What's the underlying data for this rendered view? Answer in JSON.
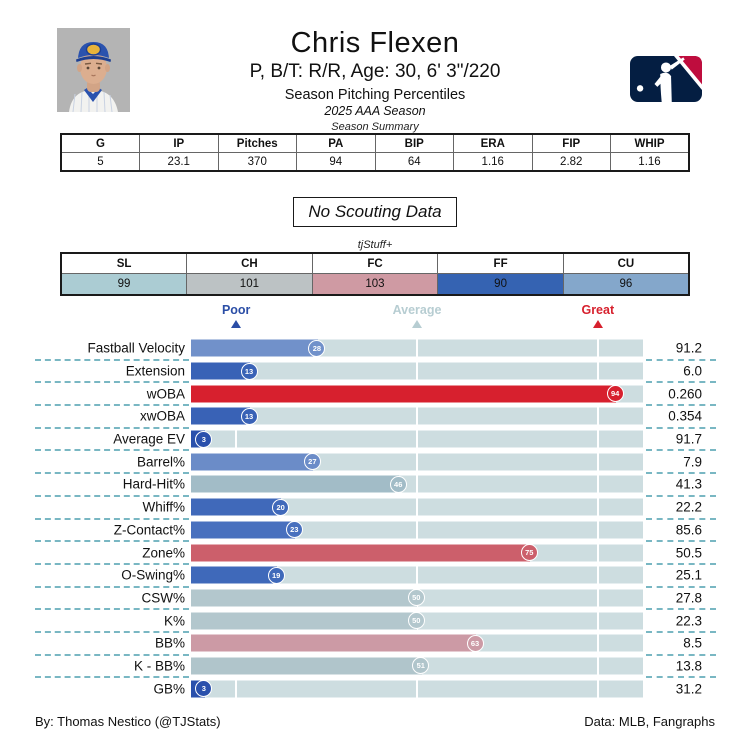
{
  "header": {
    "name": "Chris Flexen",
    "bio": "P, B/T: R/R, Age: 30, 6' 3\"/220",
    "subtitle": "Season Pitching Percentiles",
    "season": "2025 AAA Season"
  },
  "season_summary": {
    "caption": "Season Summary",
    "columns": [
      "G",
      "IP",
      "Pitches",
      "PA",
      "BIP",
      "ERA",
      "FIP",
      "WHIP"
    ],
    "values": [
      "5",
      "23.1",
      "370",
      "94",
      "64",
      "1.16",
      "2.82",
      "1.16"
    ]
  },
  "scouting": {
    "label": "No Scouting Data"
  },
  "tjstuff": {
    "caption": "tjStuff+",
    "columns": [
      "SL",
      "CH",
      "FC",
      "FF",
      "CU"
    ],
    "values": [
      "99",
      "101",
      "103",
      "90",
      "96"
    ],
    "cell_colors": [
      "#abccd3",
      "#bcc2c4",
      "#cf9aa3",
      "#3563b2",
      "#84a7cb"
    ]
  },
  "chart_data": {
    "type": "bar",
    "title": "Season Pitching Percentiles",
    "xlabel": "percentile",
    "xlim": [
      0,
      100
    ],
    "track_color": "#cddde0",
    "dash_color": "#79b7c3",
    "gridline_positions_pct": [
      10,
      50,
      90
    ],
    "axis_markers": [
      {
        "label": "Poor",
        "position_pct": 10,
        "color": "#2b4ea6"
      },
      {
        "label": "Average",
        "position_pct": 50,
        "color": "#b7cdd2"
      },
      {
        "label": "Great",
        "position_pct": 90,
        "color": "#d7212e"
      }
    ],
    "rows": [
      {
        "label": "Fastball Velocity",
        "percentile": 28,
        "value": "91.2",
        "color": "#7191ca"
      },
      {
        "label": "Extension",
        "percentile": 13,
        "value": "6.0",
        "color": "#3962b6"
      },
      {
        "label": "wOBA",
        "percentile": 94,
        "value": "0.260",
        "color": "#d7202e"
      },
      {
        "label": "xwOBA",
        "percentile": 13,
        "value": "0.354",
        "color": "#3962b6"
      },
      {
        "label": "Average EV",
        "percentile": 3,
        "value": "91.7",
        "color": "#2a50ac"
      },
      {
        "label": "Barrel%",
        "percentile": 27,
        "value": "7.9",
        "color": "#6b8cc8"
      },
      {
        "label": "Hard-Hit%",
        "percentile": 46,
        "value": "41.3",
        "color": "#a2bcc7"
      },
      {
        "label": "Whiff%",
        "percentile": 20,
        "value": "22.2",
        "color": "#4069ba"
      },
      {
        "label": "Z-Contact%",
        "percentile": 23,
        "value": "85.6",
        "color": "#4870be"
      },
      {
        "label": "Zone%",
        "percentile": 75,
        "value": "50.5",
        "color": "#cc5f6b"
      },
      {
        "label": "O-Swing%",
        "percentile": 19,
        "value": "25.1",
        "color": "#3f69ba"
      },
      {
        "label": "CSW%",
        "percentile": 50,
        "value": "27.8",
        "color": "#b3c7cd"
      },
      {
        "label": "K%",
        "percentile": 50,
        "value": "22.3",
        "color": "#b3c7cd"
      },
      {
        "label": "BB%",
        "percentile": 63,
        "value": "8.5",
        "color": "#cc9aa5"
      },
      {
        "label": "K - BB%",
        "percentile": 51,
        "value": "13.8",
        "color": "#b0c5cb"
      },
      {
        "label": "GB%",
        "percentile": 3,
        "value": "31.2",
        "color": "#2a50ac"
      }
    ]
  },
  "footer": {
    "left": "By: Thomas Nestico (@TJStats)",
    "right": "Data: MLB, Fangraphs"
  }
}
